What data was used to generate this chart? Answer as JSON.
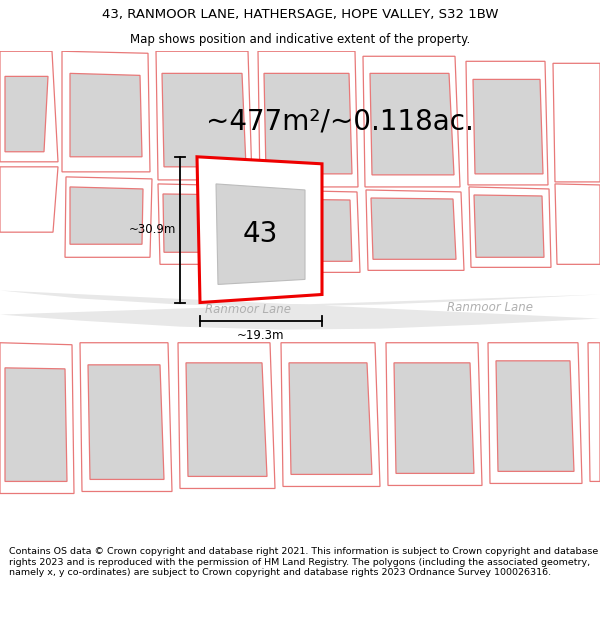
{
  "title_line1": "43, RANMOOR LANE, HATHERSAGE, HOPE VALLEY, S32 1BW",
  "title_line2": "Map shows position and indicative extent of the property.",
  "area_label": "~477m²/~0.118ac.",
  "property_number": "43",
  "dim_height": "~30.9m",
  "dim_width": "~19.3m",
  "street_label1": "Ranmoor Lane",
  "street_label2": "Ranmoor Lane",
  "footer_text": "Contains OS data © Crown copyright and database right 2021. This information is subject to Crown copyright and database rights 2023 and is reproduced with the permission of HM Land Registry. The polygons (including the associated geometry, namely x, y co-ordinates) are subject to Crown copyright and database rights 2023 Ordnance Survey 100026316.",
  "bg_color": "#ffffff",
  "building_fill": "#d4d4d4",
  "building_stroke": "#e87878",
  "lot_stroke": "#e87878",
  "plot_stroke": "#ee0000",
  "plot_fill": "#ffffff",
  "road_fill": "#e8e8e8",
  "road_label_color": "#b0b0b0",
  "dim_line_color": "#000000",
  "text_color": "#000000",
  "title_fontsize": 9.5,
  "subtitle_fontsize": 8.5,
  "area_fontsize": 20,
  "number_fontsize": 20,
  "dim_fontsize": 8.5,
  "footer_fontsize": 6.8
}
